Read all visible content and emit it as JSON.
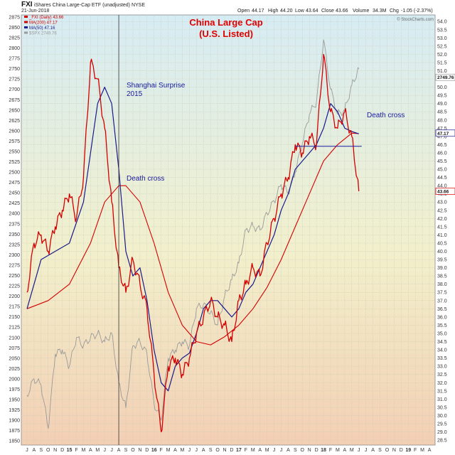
{
  "header": {
    "symbol": "FXI",
    "description": "iShares China Large-Cap ETF (unadjusted) NYSE",
    "date": "21-Jun-2018",
    "open_label": "Open",
    "open": "44.17",
    "high_label": "High",
    "high": "44.20",
    "low_label": "Low",
    "low": "43.64",
    "close_label": "Close",
    "close": "43.66",
    "volume_label": "Volume",
    "volume": "34.3M",
    "chg_label": "Chg",
    "chg": "-1.05 (-2.37%)",
    "watermark": "© StockCharts.com"
  },
  "legend": [
    {
      "text": "_FXI (Daily) 43.66",
      "color": "#d40000"
    },
    {
      "text": "MA(200) 47.17",
      "color": "#d40000"
    },
    {
      "text": "MA(50) 47.16",
      "color": "#1a1a8c"
    },
    {
      "text": "$SPX 2749.76",
      "color": "#9a9a9a"
    }
  ],
  "colors": {
    "price": "#d40000",
    "ma200": "#d40000",
    "ma50": "#1a1a8c",
    "spx": "#9a9a9a",
    "annotation": "#1a1aa0",
    "title": "#e00000",
    "bg_top": "#d6ecf4",
    "bg_mid": "#f2f0cc",
    "bg_bottom": "#f3cfb4"
  },
  "chart_data": {
    "type": "line",
    "title": "China Large Cap",
    "subtitle": "(U.S. Listed)",
    "annotations": [
      {
        "text": "Shanghai Surprise",
        "x": "2015-07"
      },
      {
        "text": "2015",
        "x": "2015-07"
      },
      {
        "text": "Death cross",
        "x": "2015-09"
      },
      {
        "text": "Death cross",
        "x": "2018-04"
      }
    ],
    "vertical_line_x": "2015-08",
    "horizontal_line": {
      "value": 46.4,
      "from": "2017-09",
      "to": "2018-06"
    },
    "grid": true,
    "left_axis": {
      "series": "$SPX",
      "range": [
        1840,
        2880
      ],
      "ticks": [
        1850,
        1875,
        1900,
        1925,
        1950,
        1975,
        2000,
        2025,
        2050,
        2075,
        2100,
        2125,
        2150,
        2175,
        2200,
        2225,
        2250,
        2275,
        2300,
        2325,
        2350,
        2375,
        2400,
        2425,
        2450,
        2475,
        2500,
        2525,
        2550,
        2575,
        2600,
        2625,
        2650,
        2675,
        2700,
        2725,
        2750,
        2775,
        2800,
        2825,
        2850,
        2875
      ]
    },
    "right_axis": {
      "series": "FXI",
      "range": [
        28.2,
        54.4
      ],
      "ticks": [
        28.5,
        29.0,
        29.5,
        30.0,
        30.5,
        31.0,
        31.5,
        32.0,
        32.5,
        33.0,
        33.5,
        34.0,
        34.5,
        35.0,
        35.5,
        36.0,
        36.5,
        37.0,
        37.5,
        38.0,
        38.5,
        39.0,
        39.5,
        40.0,
        40.5,
        41.0,
        41.5,
        42.0,
        42.5,
        43.0,
        43.5,
        44.0,
        44.5,
        45.0,
        45.5,
        46.0,
        46.5,
        47.0,
        47.5,
        48.0,
        48.5,
        49.0,
        49.5,
        50.0,
        50.5,
        51.0,
        51.5,
        52.0,
        52.5,
        53.0,
        53.5,
        54.0
      ],
      "value_labels": [
        {
          "text": "2749.76",
          "value": 50.6
        },
        {
          "text": "47.17",
          "value": 47.2
        },
        {
          "text": "43.66",
          "value": 43.66
        }
      ]
    },
    "x_axis": {
      "labels": [
        "J",
        "A",
        "S",
        "O",
        "N",
        "D",
        "15",
        "F",
        "M",
        "A",
        "M",
        "J",
        "J",
        "A",
        "S",
        "O",
        "N",
        "D",
        "16",
        "F",
        "M",
        "A",
        "M",
        "J",
        "J",
        "A",
        "S",
        "O",
        "N",
        "D",
        "17",
        "F",
        "M",
        "A",
        "M",
        "J",
        "J",
        "A",
        "S",
        "O",
        "N",
        "D",
        "18",
        "F",
        "M",
        "A",
        "M",
        "J",
        "J",
        "A",
        "S",
        "O",
        "N",
        "D",
        "19",
        "F",
        "M",
        "A"
      ]
    },
    "series": [
      {
        "name": "_FXI (Daily)",
        "axis": "right",
        "x": [
          "2014-07",
          "2014-08",
          "2014-09",
          "2014-10",
          "2014-11",
          "2014-12",
          "2015-01",
          "2015-02",
          "2015-03",
          "2015-04",
          "2015-05",
          "2015-06",
          "2015-07",
          "2015-08",
          "2015-09",
          "2015-10",
          "2015-11",
          "2015-12",
          "2016-01",
          "2016-02",
          "2016-03",
          "2016-04",
          "2016-05",
          "2016-06",
          "2016-07",
          "2016-08",
          "2016-09",
          "2016-10",
          "2016-11",
          "2016-12",
          "2017-01",
          "2017-02",
          "2017-03",
          "2017-04",
          "2017-05",
          "2017-06",
          "2017-07",
          "2017-08",
          "2017-09",
          "2017-10",
          "2017-11",
          "2017-12",
          "2018-01",
          "2018-02",
          "2018-03",
          "2018-04",
          "2018-05",
          "2018-06"
        ],
        "values": [
          37.5,
          40.5,
          41.0,
          40.0,
          41.5,
          42.5,
          43.5,
          42.0,
          44.5,
          51.5,
          50.5,
          47.5,
          43.0,
          39.0,
          37.5,
          39.5,
          38.0,
          36.5,
          32.5,
          29.0,
          33.0,
          33.5,
          32.5,
          33.5,
          35.0,
          36.0,
          37.0,
          36.0,
          35.5,
          34.5,
          37.0,
          38.0,
          39.0,
          38.5,
          40.5,
          42.0,
          43.5,
          44.5,
          46.5,
          46.0,
          47.0,
          46.5,
          52.0,
          48.5,
          47.5,
          48.5,
          47.0,
          43.66
        ]
      },
      {
        "name": "MA(200)",
        "axis": "right",
        "x": [
          "2014-07",
          "2014-10",
          "2015-01",
          "2015-04",
          "2015-06",
          "2015-08",
          "2015-09",
          "2015-11",
          "2016-01",
          "2016-03",
          "2016-05",
          "2016-07",
          "2016-09",
          "2016-11",
          "2017-01",
          "2017-03",
          "2017-05",
          "2017-07",
          "2017-09",
          "2017-11",
          "2018-01",
          "2018-03",
          "2018-05",
          "2018-06"
        ],
        "values": [
          36.5,
          37.0,
          38.0,
          40.5,
          43.0,
          44.0,
          44.0,
          43.0,
          40.5,
          37.5,
          35.5,
          34.5,
          34.3,
          34.8,
          35.5,
          36.5,
          37.8,
          39.5,
          41.5,
          43.5,
          45.5,
          46.5,
          47.2,
          47.17
        ]
      },
      {
        "name": "MA(50)",
        "axis": "right",
        "x": [
          "2014-07",
          "2014-09",
          "2014-11",
          "2015-01",
          "2015-03",
          "2015-05",
          "2015-06",
          "2015-07",
          "2015-08",
          "2015-09",
          "2015-10",
          "2015-11",
          "2015-12",
          "2016-01",
          "2016-02",
          "2016-03",
          "2016-04",
          "2016-05",
          "2016-06",
          "2016-07",
          "2016-08",
          "2016-09",
          "2016-10",
          "2016-11",
          "2016-12",
          "2017-01",
          "2017-02",
          "2017-03",
          "2017-04",
          "2017-05",
          "2017-06",
          "2017-07",
          "2017-08",
          "2017-09",
          "2017-10",
          "2017-11",
          "2017-12",
          "2018-01",
          "2018-02",
          "2018-03",
          "2018-04",
          "2018-05",
          "2018-06"
        ],
        "values": [
          36.5,
          39.5,
          40.0,
          40.5,
          43.0,
          49.0,
          50.0,
          49.0,
          45.0,
          40.0,
          38.5,
          39.0,
          37.0,
          34.0,
          32.0,
          31.5,
          33.0,
          33.5,
          33.8,
          35.0,
          36.5,
          37.0,
          37.0,
          36.5,
          36.0,
          36.5,
          37.5,
          38.0,
          39.0,
          40.0,
          41.0,
          42.5,
          43.5,
          45.0,
          45.5,
          46.0,
          46.5,
          47.5,
          49.0,
          48.5,
          47.5,
          47.3,
          47.16
        ]
      },
      {
        "name": "$SPX",
        "axis": "left",
        "x": [
          "2014-07",
          "2014-08",
          "2014-09",
          "2014-10",
          "2014-11",
          "2014-12",
          "2015-01",
          "2015-02",
          "2015-03",
          "2015-04",
          "2015-05",
          "2015-06",
          "2015-07",
          "2015-08",
          "2015-09",
          "2015-10",
          "2015-11",
          "2015-12",
          "2016-01",
          "2016-02",
          "2016-03",
          "2016-04",
          "2016-05",
          "2016-06",
          "2016-07",
          "2016-08",
          "2016-09",
          "2016-10",
          "2016-11",
          "2016-12",
          "2017-01",
          "2017-02",
          "2017-03",
          "2017-04",
          "2017-05",
          "2017-06",
          "2017-07",
          "2017-08",
          "2017-09",
          "2017-10",
          "2017-11",
          "2017-12",
          "2018-01",
          "2018-02",
          "2018-03",
          "2018-04",
          "2018-05",
          "2018-06"
        ],
        "values": [
          1960,
          2000,
          1985,
          1880,
          2060,
          2070,
          2030,
          2100,
          2080,
          2100,
          2110,
          2090,
          2110,
          1990,
          1930,
          2080,
          2090,
          2060,
          1940,
          1900,
          2050,
          2070,
          2090,
          2080,
          2170,
          2180,
          2160,
          2130,
          2200,
          2240,
          2280,
          2360,
          2370,
          2360,
          2400,
          2430,
          2470,
          2450,
          2500,
          2570,
          2640,
          2670,
          2820,
          2700,
          2640,
          2650,
          2710,
          2749.76
        ]
      }
    ]
  }
}
